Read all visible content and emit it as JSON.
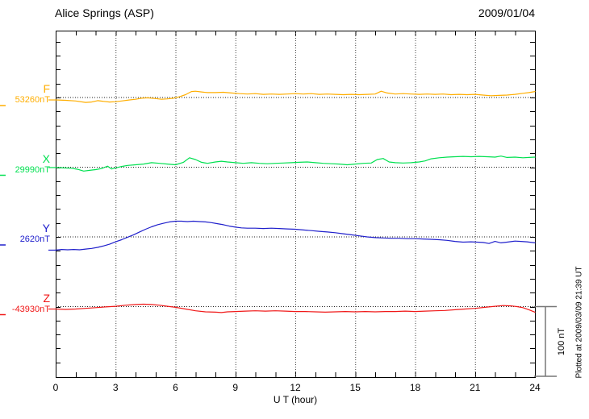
{
  "header": {
    "station": "Alice Springs (ASP)",
    "date": "2009/01/04"
  },
  "axis": {
    "xlabel": "U T (hour)",
    "tick_labels": [
      "0",
      "3",
      "6",
      "9",
      "12",
      "15",
      "18",
      "21",
      "24"
    ]
  },
  "scale_bar": {
    "label": "100 nT"
  },
  "footer_note": "Plotted at 2009/03/09 21:39 UT",
  "channels": [
    {
      "id": "F",
      "label": "F",
      "value_label": "53260nT",
      "color": "#FFAE00"
    },
    {
      "id": "X",
      "label": "X",
      "value_label": "29990nT",
      "color": "#00E050"
    },
    {
      "id": "Y",
      "label": "Y",
      "value_label": "2620nT",
      "color": "#2020CC"
    },
    {
      "id": "Z",
      "label": "Z",
      "value_label": "-43930nT",
      "color": "#F01818"
    }
  ],
  "chart_data": {
    "type": "line",
    "title": "Alice Springs (ASP) magnetogram 2009/01/04",
    "xlabel": "U T (hour)",
    "x_range": [
      0,
      24
    ],
    "x_ticks": [
      0,
      3,
      6,
      9,
      12,
      15,
      18,
      21,
      24
    ],
    "grid": "dotted vertical lines every 3 hours; dotted horizontal baseline per channel",
    "scale_division_nT": 100,
    "series": [
      {
        "name": "F",
        "baseline_nT": 53260,
        "color": "#FFAE00",
        "offsets_nT": [
          [
            0,
            -3.5
          ],
          [
            0.5,
            -4
          ],
          [
            1,
            -5
          ],
          [
            1.5,
            -7
          ],
          [
            1.8,
            -6.5
          ],
          [
            2.1,
            -4.5
          ],
          [
            2.4,
            -5.5
          ],
          [
            2.7,
            -6.5
          ],
          [
            3,
            -6
          ],
          [
            3.3,
            -5
          ],
          [
            3.7,
            -3.5
          ],
          [
            4,
            -2.5
          ],
          [
            4.3,
            -1
          ],
          [
            4.6,
            -0.5
          ],
          [
            5,
            -1.5
          ],
          [
            5.3,
            -2.5
          ],
          [
            5.6,
            -2
          ],
          [
            5.9,
            -1
          ],
          [
            6.2,
            1
          ],
          [
            6.5,
            4
          ],
          [
            6.8,
            8.5
          ],
          [
            7,
            9
          ],
          [
            7.3,
            8
          ],
          [
            7.6,
            7
          ],
          [
            8,
            7
          ],
          [
            8.4,
            7.5
          ],
          [
            8.8,
            6.5
          ],
          [
            9.2,
            5.5
          ],
          [
            9.6,
            5
          ],
          [
            10,
            5.5
          ],
          [
            10.4,
            4.5
          ],
          [
            10.8,
            5
          ],
          [
            11.2,
            4.5
          ],
          [
            11.6,
            5
          ],
          [
            12,
            5.5
          ],
          [
            12.4,
            5
          ],
          [
            12.8,
            5.5
          ],
          [
            13.2,
            4.5
          ],
          [
            13.6,
            5
          ],
          [
            14,
            4.5
          ],
          [
            14.4,
            4
          ],
          [
            14.8,
            4.5
          ],
          [
            15.2,
            4
          ],
          [
            15.6,
            4.5
          ],
          [
            16,
            5
          ],
          [
            16.3,
            9
          ],
          [
            16.6,
            6.5
          ],
          [
            17,
            5
          ],
          [
            17.4,
            5.5
          ],
          [
            17.8,
            5
          ],
          [
            18.2,
            4.5
          ],
          [
            18.6,
            5
          ],
          [
            19,
            4.5
          ],
          [
            19.4,
            5
          ],
          [
            19.8,
            4
          ],
          [
            20.2,
            4.5
          ],
          [
            20.6,
            4
          ],
          [
            21,
            4.5
          ],
          [
            21.4,
            3.5
          ],
          [
            21.8,
            2.5
          ],
          [
            22.2,
            3
          ],
          [
            22.6,
            3.5
          ],
          [
            23,
            4.5
          ],
          [
            23.4,
            6
          ],
          [
            23.7,
            7
          ],
          [
            24,
            8.5
          ]
        ]
      },
      {
        "name": "X",
        "baseline_nT": 29990,
        "color": "#00E050",
        "offsets_nT": [
          [
            0,
            -0.5
          ],
          [
            0.4,
            -1
          ],
          [
            0.8,
            -1.5
          ],
          [
            1.1,
            -3
          ],
          [
            1.4,
            -5.5
          ],
          [
            1.7,
            -4.5
          ],
          [
            2,
            -3.5
          ],
          [
            2.3,
            -2
          ],
          [
            2.6,
            1.5
          ],
          [
            2.8,
            -2.5
          ],
          [
            3,
            -1
          ],
          [
            3.3,
            1
          ],
          [
            3.6,
            2.5
          ],
          [
            4,
            3.5
          ],
          [
            4.4,
            4.5
          ],
          [
            4.8,
            6.5
          ],
          [
            5.2,
            5.5
          ],
          [
            5.6,
            4.5
          ],
          [
            6,
            3.5
          ],
          [
            6.4,
            7
          ],
          [
            6.7,
            13.5
          ],
          [
            7,
            11
          ],
          [
            7.3,
            7
          ],
          [
            7.6,
            5.5
          ],
          [
            8,
            7.5
          ],
          [
            8.3,
            8.5
          ],
          [
            8.6,
            7.5
          ],
          [
            9,
            6.5
          ],
          [
            9.4,
            5.5
          ],
          [
            9.8,
            6.5
          ],
          [
            10.2,
            5.5
          ],
          [
            10.6,
            5
          ],
          [
            11,
            5.5
          ],
          [
            11.4,
            6
          ],
          [
            11.8,
            6.5
          ],
          [
            12.2,
            7
          ],
          [
            12.6,
            7.5
          ],
          [
            13,
            6.5
          ],
          [
            13.4,
            5.5
          ],
          [
            13.8,
            5
          ],
          [
            14.2,
            4.5
          ],
          [
            14.6,
            3.5
          ],
          [
            15,
            4.5
          ],
          [
            15.4,
            5.5
          ],
          [
            15.8,
            6
          ],
          [
            16.1,
            11
          ],
          [
            16.4,
            12.5
          ],
          [
            16.7,
            7.5
          ],
          [
            17,
            6.5
          ],
          [
            17.4,
            6
          ],
          [
            17.8,
            6.5
          ],
          [
            18.2,
            7.5
          ],
          [
            18.5,
            9
          ],
          [
            18.8,
            12
          ],
          [
            19.2,
            13.5
          ],
          [
            19.6,
            14.5
          ],
          [
            20,
            15
          ],
          [
            20.4,
            15.5
          ],
          [
            20.8,
            15
          ],
          [
            21.2,
            15.5
          ],
          [
            21.6,
            15
          ],
          [
            22,
            14.5
          ],
          [
            22.3,
            16
          ],
          [
            22.6,
            14
          ],
          [
            23,
            14.5
          ],
          [
            23.4,
            13.5
          ],
          [
            23.7,
            14
          ],
          [
            24,
            14.5
          ]
        ]
      },
      {
        "name": "Y",
        "baseline_nT": 2620,
        "color": "#2020CC",
        "offsets_nT": [
          [
            0,
            -19
          ],
          [
            0.3,
            -18
          ],
          [
            0.6,
            -18.5
          ],
          [
            0.9,
            -18
          ],
          [
            1.2,
            -18.5
          ],
          [
            1.5,
            -17.5
          ],
          [
            1.8,
            -16.5
          ],
          [
            2.1,
            -15
          ],
          [
            2.4,
            -13
          ],
          [
            2.7,
            -10.5
          ],
          [
            3,
            -7
          ],
          [
            3.3,
            -4
          ],
          [
            3.6,
            -0.5
          ],
          [
            3.9,
            3
          ],
          [
            4.2,
            7
          ],
          [
            4.5,
            11
          ],
          [
            4.8,
            14.5
          ],
          [
            5.1,
            17.5
          ],
          [
            5.4,
            19.5
          ],
          [
            5.7,
            21.5
          ],
          [
            6,
            22.5
          ],
          [
            6.3,
            22.5
          ],
          [
            6.6,
            22
          ],
          [
            6.9,
            22.5
          ],
          [
            7.2,
            22
          ],
          [
            7.5,
            21.5
          ],
          [
            7.8,
            20.5
          ],
          [
            8.1,
            19
          ],
          [
            8.4,
            17.5
          ],
          [
            8.7,
            15.5
          ],
          [
            9,
            14
          ],
          [
            9.3,
            13
          ],
          [
            9.6,
            12.5
          ],
          [
            10,
            12.5
          ],
          [
            10.4,
            12
          ],
          [
            10.8,
            12.5
          ],
          [
            11.2,
            12
          ],
          [
            11.6,
            11.5
          ],
          [
            12,
            11
          ],
          [
            12.4,
            10
          ],
          [
            12.8,
            9
          ],
          [
            13.2,
            8
          ],
          [
            13.6,
            7
          ],
          [
            14,
            6
          ],
          [
            14.4,
            4.5
          ],
          [
            14.8,
            3
          ],
          [
            15.2,
            1.5
          ],
          [
            15.6,
            0
          ],
          [
            16,
            -1
          ],
          [
            16.4,
            -1.5
          ],
          [
            16.8,
            -2
          ],
          [
            17.2,
            -2
          ],
          [
            17.6,
            -2.5
          ],
          [
            18,
            -2.5
          ],
          [
            18.4,
            -3
          ],
          [
            18.8,
            -3.5
          ],
          [
            19.2,
            -4
          ],
          [
            19.6,
            -5
          ],
          [
            20,
            -6.5
          ],
          [
            20.4,
            -7.5
          ],
          [
            20.8,
            -7
          ],
          [
            21.1,
            -7.5
          ],
          [
            21.4,
            -8
          ],
          [
            21.7,
            -9.5
          ],
          [
            22,
            -6.5
          ],
          [
            22.3,
            -8.5
          ],
          [
            22.6,
            -7.5
          ],
          [
            23,
            -6
          ],
          [
            23.3,
            -6.5
          ],
          [
            23.6,
            -7
          ],
          [
            24,
            -8.5
          ]
        ]
      },
      {
        "name": "Z",
        "baseline_nT": -43930,
        "color": "#F01818",
        "offsets_nT": [
          [
            0,
            -3.5
          ],
          [
            0.5,
            -4
          ],
          [
            1,
            -3.5
          ],
          [
            1.5,
            -2.5
          ],
          [
            2,
            -1.5
          ],
          [
            2.5,
            -0.5
          ],
          [
            3,
            0.5
          ],
          [
            3.5,
            2
          ],
          [
            4,
            3
          ],
          [
            4.4,
            3.5
          ],
          [
            4.8,
            3
          ],
          [
            5.2,
            2
          ],
          [
            5.6,
            0.5
          ],
          [
            6,
            -1
          ],
          [
            6.5,
            -3.5
          ],
          [
            7,
            -6
          ],
          [
            7.5,
            -7.5
          ],
          [
            8,
            -8
          ],
          [
            8.3,
            -8.5
          ],
          [
            8.6,
            -7.5
          ],
          [
            9,
            -7
          ],
          [
            9.5,
            -6.5
          ],
          [
            10,
            -6
          ],
          [
            10.5,
            -6.5
          ],
          [
            11,
            -6
          ],
          [
            11.5,
            -6.5
          ],
          [
            12,
            -7
          ],
          [
            12.5,
            -7
          ],
          [
            13,
            -7.5
          ],
          [
            13.5,
            -8
          ],
          [
            14,
            -7.5
          ],
          [
            14.5,
            -7
          ],
          [
            15,
            -7.5
          ],
          [
            15.5,
            -7
          ],
          [
            16,
            -7.5
          ],
          [
            16.5,
            -7
          ],
          [
            17,
            -7
          ],
          [
            17.5,
            -6.5
          ],
          [
            18,
            -7
          ],
          [
            18.5,
            -6.5
          ],
          [
            19,
            -6
          ],
          [
            19.5,
            -5.5
          ],
          [
            20,
            -4.5
          ],
          [
            20.5,
            -3.5
          ],
          [
            21,
            -2.5
          ],
          [
            21.5,
            -1
          ],
          [
            22,
            0.5
          ],
          [
            22.4,
            1.5
          ],
          [
            22.8,
            1
          ],
          [
            23.1,
            0
          ],
          [
            23.4,
            -1.5
          ],
          [
            23.7,
            -4.5
          ],
          [
            24,
            -8
          ]
        ]
      }
    ]
  }
}
